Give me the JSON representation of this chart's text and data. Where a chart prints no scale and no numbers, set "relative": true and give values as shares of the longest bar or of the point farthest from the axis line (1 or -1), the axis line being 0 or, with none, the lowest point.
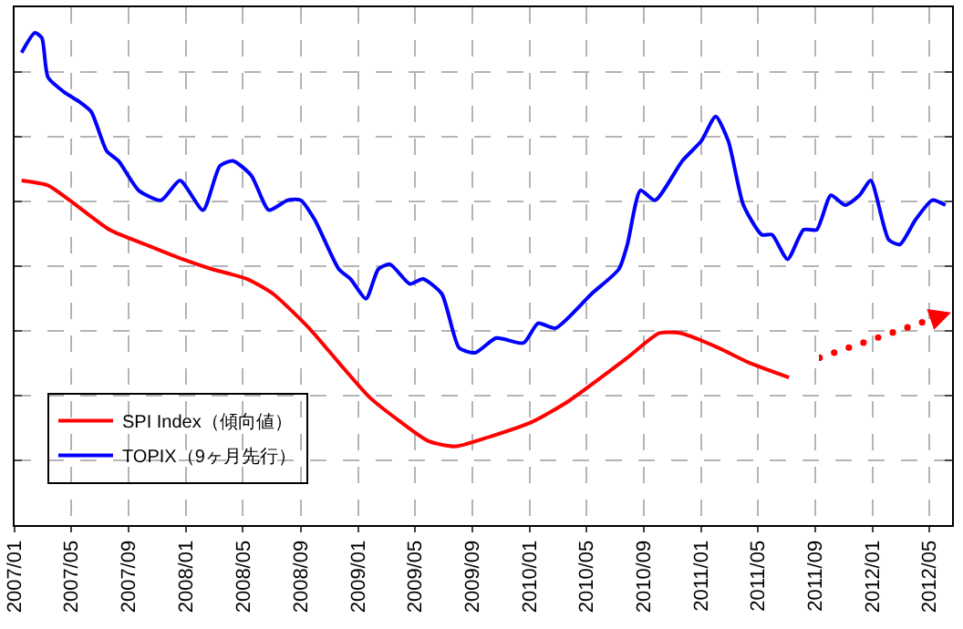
{
  "chart_data": {
    "type": "line",
    "relative": true,
    "grid": true,
    "legend": "bottom left",
    "line_style": "solid",
    "marker": "none",
    "xlim": [
      "2007-01-01",
      "2012-06-18"
    ],
    "xticks": [
      {
        "value": "2007-01-01",
        "label": "2007/01"
      },
      {
        "value": "2007-05-01",
        "label": "2007/05"
      },
      {
        "value": "2007-09-01",
        "label": "2007/09"
      },
      {
        "value": "2008-01-01",
        "label": "2008/01"
      },
      {
        "value": "2008-05-01",
        "label": "2008/05"
      },
      {
        "value": "2008-09-01",
        "label": "2008/09"
      },
      {
        "value": "2009-01-01",
        "label": "2009/01"
      },
      {
        "value": "2009-05-01",
        "label": "2009/05"
      },
      {
        "value": "2009-09-01",
        "label": "2009/09"
      },
      {
        "value": "2010-01-01",
        "label": "2010/01"
      },
      {
        "value": "2010-05-01",
        "label": "2010/05"
      },
      {
        "value": "2010-09-01",
        "label": "2010/09"
      },
      {
        "value": "2011-01-01",
        "label": "2011/01"
      },
      {
        "value": "2011-05-01",
        "label": "2011/05"
      },
      {
        "value": "2011-09-01",
        "label": "2011/09"
      },
      {
        "value": "2012-01-01",
        "label": "2012/01"
      },
      {
        "value": "2012-05-01",
        "label": "2012/05"
      }
    ],
    "series": [
      {
        "name": "SPI Index（傾向値）",
        "color": "#ff0000",
        "x": [
          "2007-01-16",
          "2007-03-13",
          "2007-04-28",
          "2007-07-22",
          "2007-10-07",
          "2007-12-25",
          "2008-02-25",
          "2008-05-10",
          "2008-07-04",
          "2008-09-19",
          "2008-11-21",
          "2009-01-25",
          "2009-04-01",
          "2009-06-01",
          "2009-07-28",
          "2009-10-10",
          "2010-01-07",
          "2010-03-22",
          "2010-07-28",
          "2010-10-04",
          "2010-11-19",
          "2011-02-07",
          "2011-04-13",
          "2011-07-07"
        ],
        "values": [
          0.7,
          0.69,
          0.66,
          0.6,
          0.57,
          0.54,
          0.52,
          0.5,
          0.47,
          0.4,
          0.33,
          0.26,
          0.21,
          0.17,
          0.16,
          0.18,
          0.21,
          0.25,
          0.34,
          0.39,
          0.39,
          0.36,
          0.33,
          0.3
        ]
      },
      {
        "name": "TOPIX（9ヶ月先行）",
        "color": "#0000ff",
        "x": [
          "2007-01-16",
          "2007-02-13",
          "2007-02-28",
          "2007-03-13",
          "2007-04-16",
          "2007-05-19",
          "2007-06-13",
          "2007-07-16",
          "2007-08-10",
          "2007-09-22",
          "2007-11-09",
          "2007-12-19",
          "2008-02-06",
          "2008-03-13",
          "2008-04-10",
          "2008-05-19",
          "2008-06-25",
          "2008-08-04",
          "2008-09-01",
          "2008-10-01",
          "2008-11-21",
          "2008-12-16",
          "2009-01-18",
          "2009-02-13",
          "2009-03-10",
          "2009-04-21",
          "2009-05-19",
          "2009-06-28",
          "2009-08-04",
          "2009-09-07",
          "2009-10-22",
          "2009-12-19",
          "2010-01-19",
          "2010-02-25",
          "2010-05-13",
          "2010-07-10",
          "2010-07-28",
          "2010-08-25",
          "2010-09-25",
          "2010-11-22",
          "2011-01-01",
          "2011-02-01",
          "2011-02-28",
          "2011-04-01",
          "2011-05-10",
          "2011-06-01",
          "2011-07-04",
          "2011-08-07",
          "2011-09-04",
          "2011-10-04",
          "2011-11-04",
          "2011-12-04",
          "2011-12-28",
          "2012-02-04",
          "2012-02-28",
          "2012-04-01",
          "2012-05-07",
          "2012-06-04"
        ],
        "values": [
          0.96,
          1.0,
          0.99,
          0.91,
          0.88,
          0.86,
          0.84,
          0.76,
          0.74,
          0.68,
          0.66,
          0.7,
          0.64,
          0.73,
          0.74,
          0.71,
          0.64,
          0.66,
          0.66,
          0.62,
          0.52,
          0.5,
          0.46,
          0.52,
          0.53,
          0.49,
          0.5,
          0.47,
          0.36,
          0.35,
          0.38,
          0.37,
          0.41,
          0.4,
          0.47,
          0.52,
          0.57,
          0.68,
          0.66,
          0.74,
          0.78,
          0.83,
          0.78,
          0.65,
          0.59,
          0.59,
          0.54,
          0.6,
          0.6,
          0.67,
          0.65,
          0.67,
          0.7,
          0.58,
          0.57,
          0.62,
          0.66,
          0.65
        ]
      }
    ]
  }
}
